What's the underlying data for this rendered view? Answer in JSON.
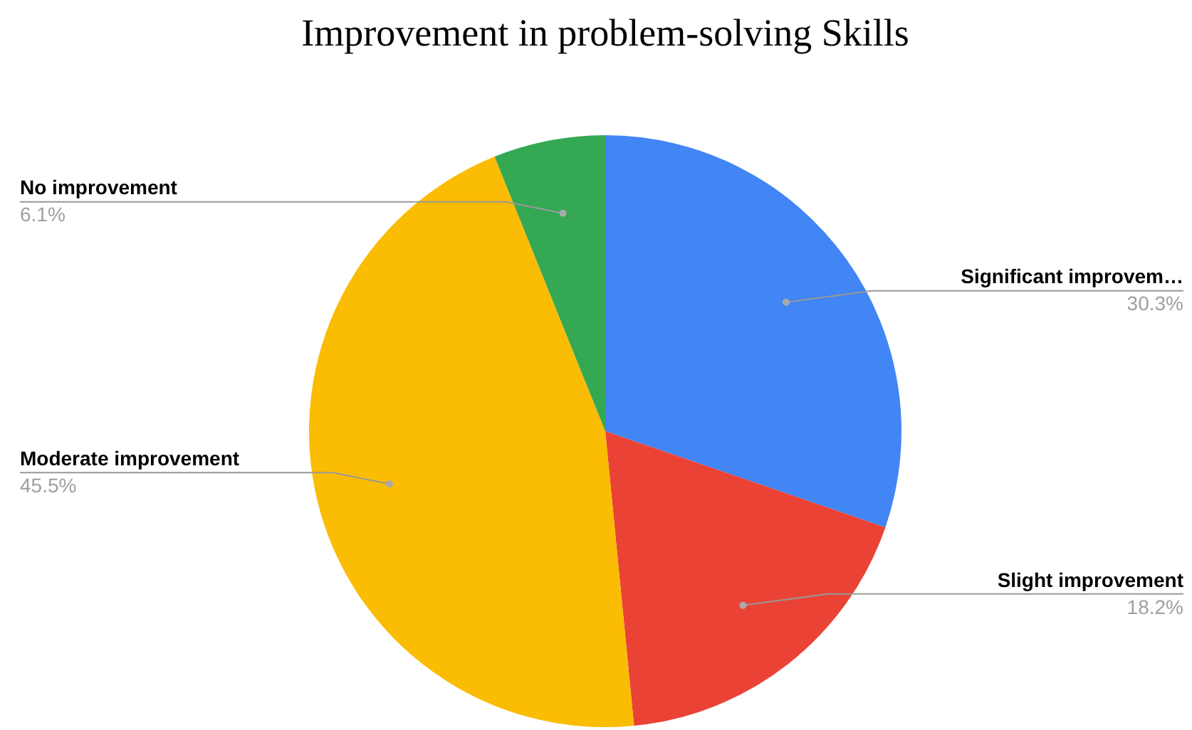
{
  "chart_data": {
    "type": "pie",
    "title": "Improvement in problem-solving Skills",
    "categories": [
      "Significant improvem…",
      "Slight improvement",
      "Moderate improvement",
      "No improvement"
    ],
    "values": [
      30.3,
      18.2,
      45.5,
      6.1
    ],
    "value_labels": [
      "30.3%",
      "18.2%",
      "45.5%",
      "6.1%"
    ],
    "colors": [
      "#4285f4",
      "#ea4335",
      "#fbbc04",
      "#34a853"
    ],
    "legend": false
  }
}
